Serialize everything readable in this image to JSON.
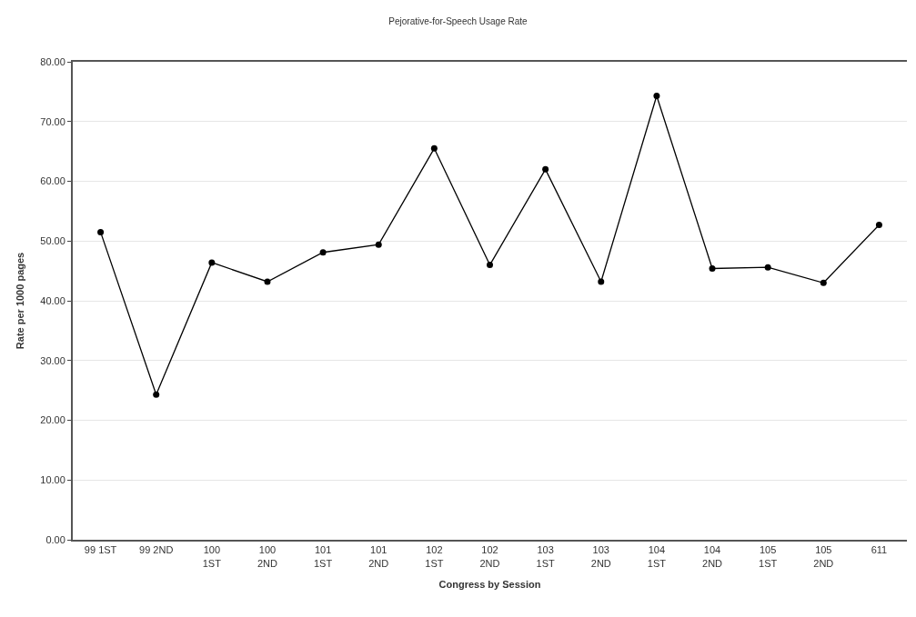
{
  "chart_data": {
    "type": "line",
    "title": "Pejorative-for-Speech Usage Rate",
    "xlabel": "Congress by Session",
    "ylabel": "Rate per 1000 pages",
    "categories": [
      "99 1ST",
      "99 2ND",
      "100\n1ST",
      "100\n2ND",
      "101\n1ST",
      "101\n2ND",
      "102\n1ST",
      "102\n2ND",
      "103\n1ST",
      "103\n2ND",
      "104\n1ST",
      "104\n2ND",
      "105\n1ST",
      "105\n2ND",
      "611"
    ],
    "series": [
      {
        "color": "#000000",
        "values": [
          51.5,
          24.3,
          46.4,
          43.2,
          48.1,
          49.4,
          65.5,
          46.0,
          62.0,
          43.2,
          74.3,
          45.4,
          45.6,
          43.0,
          52.7
        ]
      }
    ],
    "ylim": [
      0,
      80
    ],
    "yticks": [
      {
        "value": 0,
        "label": "0.00"
      },
      {
        "value": 10,
        "label": "10.00"
      },
      {
        "value": 20,
        "label": "20.00"
      },
      {
        "value": 30,
        "label": "30.00"
      },
      {
        "value": 40,
        "label": "40.00"
      },
      {
        "value": 50,
        "label": "50.00"
      },
      {
        "value": 60,
        "label": "60.00"
      },
      {
        "value": 70,
        "label": "70.00"
      },
      {
        "value": 80,
        "label": "80.00"
      }
    ],
    "grid": "y",
    "marker": "circle",
    "line_style": "solid"
  }
}
